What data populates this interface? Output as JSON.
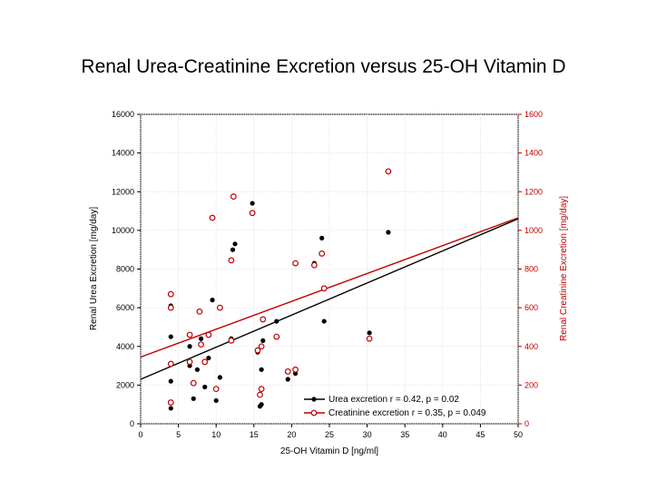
{
  "chart_data": {
    "type": "scatter",
    "title": "Renal Urea-Creatinine Excretion versus 25-OH Vitamin D",
    "xlabel": "25-OH Vitamin D  [ng/ml]",
    "ylabel_left": "Renal Urea Excretion  [mg/day]",
    "ylabel_right": "Renal Creatinine Excretion  [mg/day]",
    "xlim": [
      0,
      50
    ],
    "ylim_left": [
      0,
      16000
    ],
    "ylim_right": [
      0,
      1600
    ],
    "x_ticks": [
      "0",
      "5",
      "10",
      "15",
      "20",
      "25",
      "30",
      "35",
      "40",
      "45",
      "50"
    ],
    "y_ticks_left": [
      "0",
      "2000",
      "4000",
      "6000",
      "8000",
      "10000",
      "12000",
      "14000",
      "16000"
    ],
    "y_ticks_right": [
      "0",
      "200",
      "400",
      "600",
      "800",
      "1000",
      "1200",
      "1400",
      "1600"
    ],
    "grid": true,
    "legend_position": "bottom-right",
    "series": [
      {
        "name": "Urea excretion r = 0.42, p = 0.02",
        "axis": "left",
        "color": "#000000",
        "marker": "filled-circle",
        "points": [
          [
            4,
            800
          ],
          [
            4,
            2200
          ],
          [
            4,
            4500
          ],
          [
            4,
            6100
          ],
          [
            6.5,
            3000
          ],
          [
            6.5,
            4000
          ],
          [
            7,
            1300
          ],
          [
            7.5,
            2800
          ],
          [
            8,
            4400
          ],
          [
            8.5,
            1900
          ],
          [
            9,
            3400
          ],
          [
            9.5,
            6400
          ],
          [
            10,
            1200
          ],
          [
            10.5,
            2400
          ],
          [
            12,
            4400
          ],
          [
            12.2,
            9000
          ],
          [
            12.5,
            9300
          ],
          [
            14.8,
            11400
          ],
          [
            15.5,
            3700
          ],
          [
            15.8,
            900
          ],
          [
            16,
            1000
          ],
          [
            16,
            2800
          ],
          [
            16.2,
            4300
          ],
          [
            18,
            5300
          ],
          [
            19.5,
            2300
          ],
          [
            20.5,
            2600
          ],
          [
            20.5,
            8300
          ],
          [
            23,
            8300
          ],
          [
            24,
            9600
          ],
          [
            24.3,
            5300
          ],
          [
            30.3,
            4700
          ],
          [
            32.8,
            9900
          ]
        ],
        "fit_line": [
          [
            0,
            2300
          ],
          [
            50,
            10600
          ]
        ]
      },
      {
        "name": "Creatinine excretion r = 0.35, p = 0.049",
        "axis": "right",
        "color": "#c00000",
        "marker": "open-circle",
        "points": [
          [
            4,
            110
          ],
          [
            4,
            310
          ],
          [
            4,
            600
          ],
          [
            4,
            670
          ],
          [
            6.5,
            320
          ],
          [
            6.5,
            460
          ],
          [
            7,
            210
          ],
          [
            7.8,
            580
          ],
          [
            8,
            410
          ],
          [
            8.5,
            320
          ],
          [
            9,
            460
          ],
          [
            9.5,
            1065
          ],
          [
            10,
            180
          ],
          [
            10.5,
            600
          ],
          [
            12,
            430
          ],
          [
            12,
            845
          ],
          [
            12.3,
            1175
          ],
          [
            14.8,
            1090
          ],
          [
            15.5,
            380
          ],
          [
            15.8,
            150
          ],
          [
            16,
            180
          ],
          [
            16,
            400
          ],
          [
            16.2,
            540
          ],
          [
            18,
            450
          ],
          [
            19.5,
            270
          ],
          [
            20.5,
            280
          ],
          [
            20.5,
            830
          ],
          [
            23,
            820
          ],
          [
            24,
            880
          ],
          [
            24.3,
            700
          ],
          [
            30.3,
            440
          ],
          [
            32.8,
            1305
          ]
        ],
        "fit_line": [
          [
            0,
            345
          ],
          [
            50,
            1065
          ]
        ]
      }
    ]
  }
}
